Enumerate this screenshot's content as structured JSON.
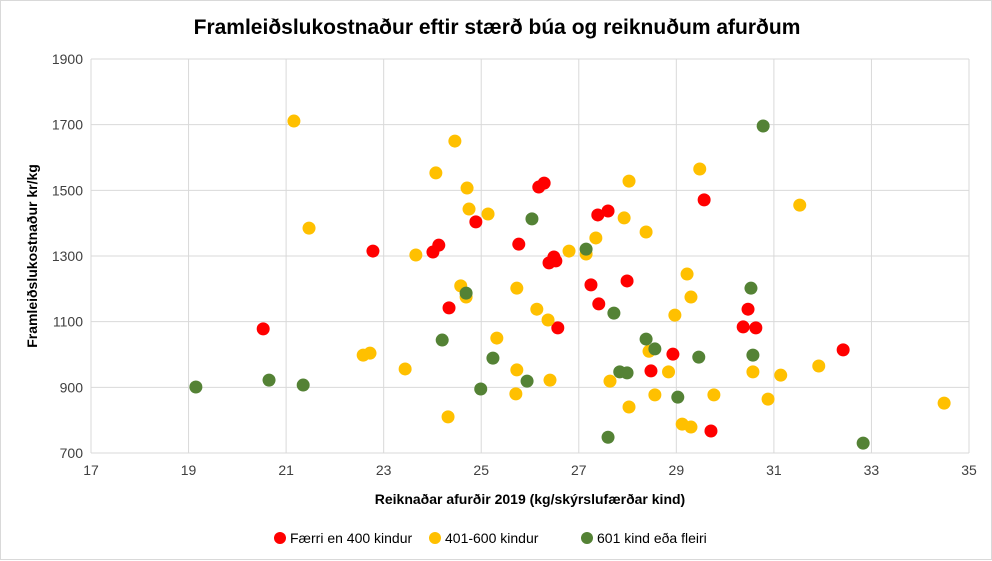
{
  "chart_data": {
    "type": "scatter",
    "title": "Framleiðslukostnaður eftir stærð búa og reiknuðum afurðum",
    "xlabel": "Reiknaðar afurðir 2019 (kg/skýrslufærðar kind)",
    "ylabel": "Framleiðslukostnaður  kr/kg",
    "xlim": [
      17,
      35
    ],
    "ylim": [
      700,
      1900
    ],
    "xticks": [
      "17",
      "19",
      "21",
      "23",
      "25",
      "27",
      "29",
      "31",
      "33",
      "35"
    ],
    "yticks": [
      "700",
      "900",
      "1100",
      "1300",
      "1500",
      "1700",
      "1900"
    ],
    "grid": true,
    "legend_position": "bottom",
    "series": [
      {
        "name": "Færri en 400 kindur",
        "color": "#ff0000",
        "points": [
          [
            20.53,
            1078
          ],
          [
            22.78,
            1315
          ],
          [
            24.01,
            1312
          ],
          [
            24.13,
            1333
          ],
          [
            24.34,
            1142
          ],
          [
            24.89,
            1404
          ],
          [
            25.77,
            1336
          ],
          [
            26.18,
            1510
          ],
          [
            26.29,
            1522
          ],
          [
            26.49,
            1297
          ],
          [
            26.39,
            1279
          ],
          [
            26.53,
            1285
          ],
          [
            26.57,
            1081
          ],
          [
            27.25,
            1212
          ],
          [
            27.41,
            1154
          ],
          [
            27.39,
            1425
          ],
          [
            27.6,
            1437
          ],
          [
            27.99,
            1224
          ],
          [
            28.48,
            950
          ],
          [
            28.93,
            1001
          ],
          [
            29.57,
            1471
          ],
          [
            29.71,
            767
          ],
          [
            30.37,
            1084
          ],
          [
            30.47,
            1138
          ],
          [
            30.63,
            1081
          ],
          [
            32.42,
            1014
          ]
        ]
      },
      {
        "name": "401-600 kindur",
        "color": "#ffc000",
        "points": [
          [
            21.16,
            1711
          ],
          [
            21.47,
            1385
          ],
          [
            23.66,
            1303
          ],
          [
            24.07,
            1553
          ],
          [
            24.46,
            1650
          ],
          [
            24.71,
            1507
          ],
          [
            24.75,
            1443
          ],
          [
            25.14,
            1428
          ],
          [
            24.58,
            1209
          ],
          [
            24.69,
            1175
          ],
          [
            25.32,
            1050
          ],
          [
            25.73,
            1202
          ],
          [
            26.14,
            1138
          ],
          [
            26.37,
            1105
          ],
          [
            26.8,
            1315
          ],
          [
            27.15,
            1306
          ],
          [
            27.35,
            1355
          ],
          [
            27.93,
            1416
          ],
          [
            28.03,
            1528
          ],
          [
            28.38,
            1373
          ],
          [
            29.48,
            1565
          ],
          [
            31.53,
            1455
          ],
          [
            22.58,
            998
          ],
          [
            22.72,
            1004
          ],
          [
            23.44,
            956
          ],
          [
            24.32,
            810
          ],
          [
            25.73,
            953
          ],
          [
            25.71,
            880
          ],
          [
            26.41,
            922
          ],
          [
            27.64,
            919
          ],
          [
            28.44,
            1010
          ],
          [
            28.56,
            877
          ],
          [
            28.03,
            840
          ],
          [
            28.84,
            947
          ],
          [
            28.97,
            1120
          ],
          [
            29.22,
            1245
          ],
          [
            29.3,
            1175
          ],
          [
            29.12,
            788
          ],
          [
            29.3,
            779
          ],
          [
            29.77,
            877
          ],
          [
            30.57,
            947
          ],
          [
            30.88,
            864
          ],
          [
            31.14,
            937
          ],
          [
            31.92,
            965
          ],
          [
            34.49,
            852
          ]
        ]
      },
      {
        "name": "601 kind eða fleiri",
        "color": "#548235",
        "points": [
          [
            19.15,
            901
          ],
          [
            20.65,
            922
          ],
          [
            21.35,
            907
          ],
          [
            24.2,
            1044
          ],
          [
            24.69,
            1187
          ],
          [
            25.24,
            989
          ],
          [
            24.99,
            895
          ],
          [
            26.04,
            1413
          ],
          [
            25.94,
            919
          ],
          [
            27.15,
            1321
          ],
          [
            27.72,
            1126
          ],
          [
            27.84,
            947
          ],
          [
            27.99,
            944
          ],
          [
            28.38,
            1047
          ],
          [
            28.56,
            1017
          ],
          [
            29.03,
            870
          ],
          [
            29.46,
            992
          ],
          [
            27.6,
            748
          ],
          [
            30.53,
            1202
          ],
          [
            30.57,
            998
          ],
          [
            30.78,
            1696
          ],
          [
            32.83,
            730
          ]
        ]
      }
    ]
  }
}
